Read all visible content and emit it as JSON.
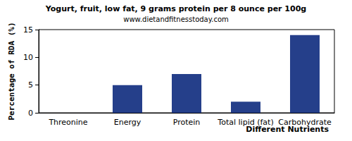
{
  "chart_data": {
    "type": "bar",
    "title": "Yogurt, fruit, low fat, 9 grams protein per 8 ounce per 100g",
    "subtitle": "www.dietandfitnesstoday.com",
    "x_label": "Different Nutrients",
    "y_label": "Percentage of RDA (%)",
    "categories": [
      "Threonine",
      "Energy",
      "Protein",
      "Total lipid (fat)",
      "Carbohydrate"
    ],
    "values": [
      0,
      5,
      7,
      2,
      14
    ],
    "color": "#253f8a",
    "ylim": [
      0,
      15
    ],
    "yticks": [
      0,
      5,
      10,
      15
    ],
    "grid": false
  }
}
